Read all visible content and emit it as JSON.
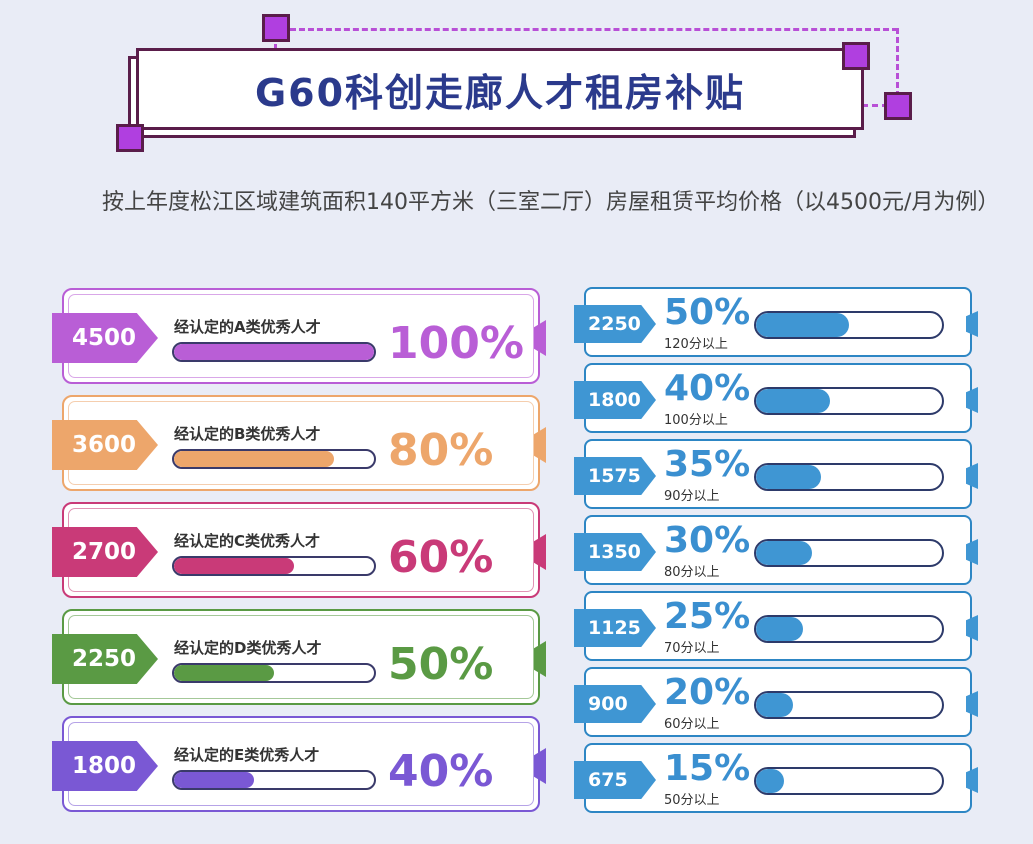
{
  "header": {
    "title": "G60科创走廊人才租房补贴"
  },
  "description": "按上年度松江区域建筑面积140平方米（三室二厅）房屋租赁平均价格（以4500元/月为例）",
  "colors": {
    "category_a": "#b95ed6",
    "category_b": "#eda66b",
    "category_c": "#c93a78",
    "category_d": "#5a9a44",
    "category_e": "#7a58d4",
    "score_blue": "#3f96d3",
    "title_blue": "#2b3a8c"
  },
  "categories": [
    {
      "amount": "4500",
      "label": "经认定的A类优秀人才",
      "percent": "100%",
      "fill_fraction": 1.0,
      "color": "#b95ed6"
    },
    {
      "amount": "3600",
      "label": "经认定的B类优秀人才",
      "percent": "80%",
      "fill_fraction": 0.8,
      "color": "#eda66b"
    },
    {
      "amount": "2700",
      "label": "经认定的C类优秀人才",
      "percent": "60%",
      "fill_fraction": 0.6,
      "color": "#c93a78"
    },
    {
      "amount": "2250",
      "label": "经认定的D类优秀人才",
      "percent": "50%",
      "fill_fraction": 0.5,
      "color": "#5a9a44"
    },
    {
      "amount": "1800",
      "label": "经认定的E类优秀人才",
      "percent": "40%",
      "fill_fraction": 0.4,
      "color": "#7a58d4"
    }
  ],
  "scores": [
    {
      "amount": "2250",
      "percent": "50%",
      "condition": "120分以上",
      "fill_fraction": 0.5
    },
    {
      "amount": "1800",
      "percent": "40%",
      "condition": "100分以上",
      "fill_fraction": 0.4
    },
    {
      "amount": "1575",
      "percent": "35%",
      "condition": "90分以上",
      "fill_fraction": 0.35
    },
    {
      "amount": "1350",
      "percent": "30%",
      "condition": "80分以上",
      "fill_fraction": 0.3
    },
    {
      "amount": "1125",
      "percent": "25%",
      "condition": "70分以上",
      "fill_fraction": 0.25
    },
    {
      "amount": "900",
      "percent": "20%",
      "condition": "60分以上",
      "fill_fraction": 0.2
    },
    {
      "amount": "675",
      "percent": "15%",
      "condition": "50分以上",
      "fill_fraction": 0.15
    }
  ]
}
